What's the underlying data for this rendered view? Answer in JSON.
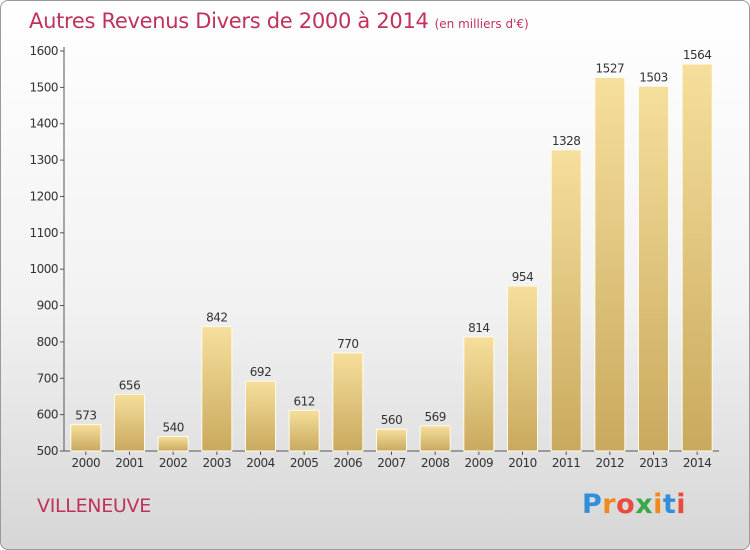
{
  "header": {
    "title": "Autres Revenus Divers de 2000 à 2014",
    "unit": "(en milliers d'€)"
  },
  "footer": {
    "town": "VILLENEUVE",
    "logo": {
      "letters": [
        "P",
        "r",
        "o",
        "x",
        "i",
        "t",
        "i"
      ],
      "colors": [
        "#2f8fd8",
        "#f08a1c",
        "#e94b3c",
        "#3aa84a",
        "#f08a1c",
        "#2f8fd8",
        "#e94b3c"
      ]
    }
  },
  "chart_data": {
    "type": "bar",
    "title": "Autres Revenus Divers de 2000 à 2014",
    "subtitle": "(en milliers d'€)",
    "categories": [
      "2000",
      "2001",
      "2002",
      "2003",
      "2004",
      "2005",
      "2006",
      "2007",
      "2008",
      "2009",
      "2010",
      "2011",
      "2012",
      "2013",
      "2014"
    ],
    "values": [
      573,
      656,
      540,
      842,
      692,
      612,
      770,
      560,
      569,
      814,
      954,
      1328,
      1527,
      1503,
      1564
    ],
    "ylim": [
      500,
      1600
    ],
    "yticks": [
      500,
      600,
      700,
      800,
      900,
      1000,
      1100,
      1200,
      1300,
      1400,
      1500,
      1600
    ],
    "grid": false,
    "colors": {
      "bar_top": "#f6df9c",
      "bar_bottom": "#c9a95e",
      "text": "#333333",
      "accent": "#c0325a"
    }
  }
}
